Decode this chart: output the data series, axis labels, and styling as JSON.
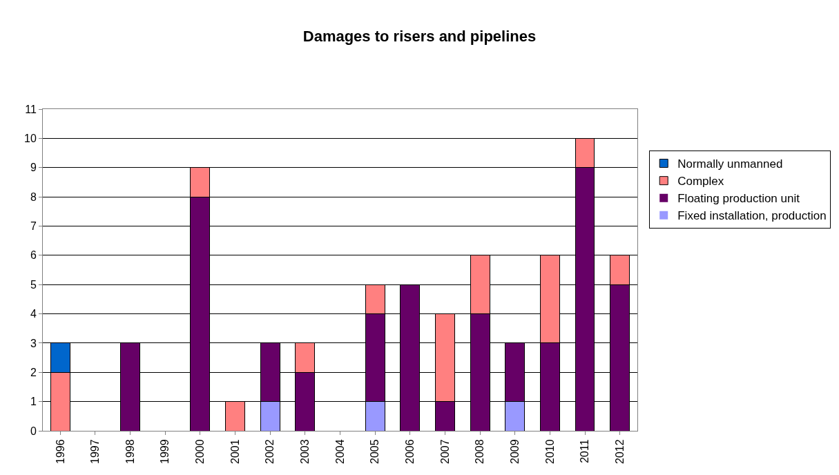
{
  "chart_data": {
    "type": "bar",
    "title": "Damages to risers and pipelines",
    "stacked": true,
    "categories": [
      "1996",
      "1997",
      "1998",
      "1999",
      "2000",
      "2001",
      "2002",
      "2003",
      "2004",
      "2005",
      "2006",
      "2007",
      "2008",
      "2009",
      "2010",
      "2011",
      "2012"
    ],
    "series": [
      {
        "name": "Fixed installation, production",
        "color": "#9999ff",
        "values": [
          0,
          0,
          0,
          0,
          0,
          0,
          1,
          0,
          0,
          1,
          0,
          0,
          0,
          1,
          0,
          0,
          0
        ]
      },
      {
        "name": "Floating production unit",
        "color": "#660066",
        "values": [
          0,
          0,
          3,
          0,
          8,
          0,
          2,
          2,
          0,
          3,
          5,
          1,
          4,
          2,
          3,
          9,
          5
        ]
      },
      {
        "name": "Complex",
        "color": "#ff8080",
        "values": [
          2,
          0,
          0,
          0,
          1,
          1,
          0,
          1,
          0,
          1,
          0,
          3,
          2,
          0,
          3,
          1,
          1
        ]
      },
      {
        "name": "Normally unmanned",
        "color": "#0066cc",
        "values": [
          1,
          0,
          0,
          0,
          0,
          0,
          0,
          0,
          0,
          0,
          0,
          0,
          0,
          0,
          0,
          0,
          0
        ]
      }
    ],
    "ylim": [
      0,
      11
    ],
    "yticks": [
      0,
      1,
      2,
      3,
      4,
      5,
      6,
      7,
      8,
      9,
      10,
      11
    ],
    "grid": "y",
    "legend": "right"
  }
}
